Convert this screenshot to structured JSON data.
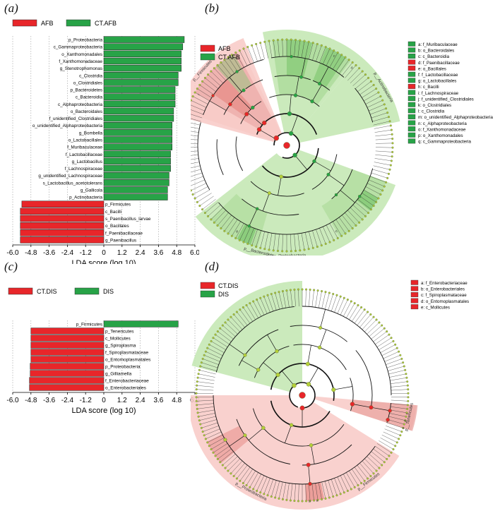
{
  "panel_labels": {
    "a": "(a)",
    "b": "(b)",
    "c": "(c)",
    "d": "(d)"
  },
  "colors": {
    "red": "#e8262a",
    "green": "#27a347",
    "light_green": "#c2e6b0",
    "light_red": "#f8c9c6",
    "node": "#b5cf39"
  },
  "chart_data": [
    {
      "type": "bar",
      "panel": "a",
      "legend": [
        {
          "name": "AFB",
          "color": "#e8262a"
        },
        {
          "name": "CT.AFB",
          "color": "#27a347"
        }
      ],
      "legend_position": "top-left",
      "xlabel": "LDA score (log 10)",
      "xlim": [
        -6.0,
        6.0
      ],
      "xticks": [
        "-6.0",
        "-4.8",
        "-3.6",
        "-2.4",
        "-1.2",
        "0",
        "1.2",
        "2.4",
        "3.6",
        "4.8",
        "6.0"
      ],
      "xtick_values": [
        -6.0,
        -4.8,
        -3.6,
        -2.4,
        -1.2,
        0,
        1.2,
        2.4,
        3.6,
        4.8,
        6.0
      ],
      "grid": true,
      "bars": [
        {
          "label": "p_Proteobacteria",
          "value": 5.3,
          "group": "CT.AFB"
        },
        {
          "label": "c_Gammaproteobacteria",
          "value": 5.2,
          "group": "CT.AFB"
        },
        {
          "label": "o_Xanthomonadales",
          "value": 5.1,
          "group": "CT.AFB"
        },
        {
          "label": "f_Xanthomonadaceae",
          "value": 5.1,
          "group": "CT.AFB"
        },
        {
          "label": "g_Stenotrophomonas",
          "value": 5.1,
          "group": "CT.AFB"
        },
        {
          "label": "c_Clostridia",
          "value": 4.9,
          "group": "CT.AFB"
        },
        {
          "label": "o_Clostridiales",
          "value": 4.9,
          "group": "CT.AFB"
        },
        {
          "label": "p_Bacteroidetes",
          "value": 4.7,
          "group": "CT.AFB"
        },
        {
          "label": "c_Bacteroidia",
          "value": 4.7,
          "group": "CT.AFB"
        },
        {
          "label": "c_Alphaproteobacteria",
          "value": 4.7,
          "group": "CT.AFB"
        },
        {
          "label": "o_Bacteroidales",
          "value": 4.6,
          "group": "CT.AFB"
        },
        {
          "label": "f_unidentified_Clostridiales",
          "value": 4.6,
          "group": "CT.AFB"
        },
        {
          "label": "o_unidentified_Alphaproteobacteria",
          "value": 4.5,
          "group": "CT.AFB"
        },
        {
          "label": "g_Bombella",
          "value": 4.5,
          "group": "CT.AFB"
        },
        {
          "label": "o_Lactobacillales",
          "value": 4.5,
          "group": "CT.AFB"
        },
        {
          "label": "f_Muribaculaceae",
          "value": 4.5,
          "group": "CT.AFB"
        },
        {
          "label": "f_Lactobacillaceae",
          "value": 4.4,
          "group": "CT.AFB"
        },
        {
          "label": "g_Lactobacillus",
          "value": 4.4,
          "group": "CT.AFB"
        },
        {
          "label": "f_Lachnospiraceae",
          "value": 4.4,
          "group": "CT.AFB"
        },
        {
          "label": "g_unidentified_Lachnospiraceae",
          "value": 4.3,
          "group": "CT.AFB"
        },
        {
          "label": "s_Lactobacillus_acetotolerans",
          "value": 4.3,
          "group": "CT.AFB"
        },
        {
          "label": "g_Gallicola",
          "value": 4.2,
          "group": "CT.AFB"
        },
        {
          "label": "p_Actinobacteria",
          "value": 4.2,
          "group": "CT.AFB"
        },
        {
          "label": "p_Firmicutes",
          "value": -5.4,
          "group": "AFB"
        },
        {
          "label": "c_Bacilli",
          "value": -5.5,
          "group": "AFB"
        },
        {
          "label": "s_Paenibacillus_larvae",
          "value": -5.5,
          "group": "AFB"
        },
        {
          "label": "o_Bacillales",
          "value": -5.5,
          "group": "AFB"
        },
        {
          "label": "f_Paenibacillaceae",
          "value": -5.5,
          "group": "AFB"
        },
        {
          "label": "g_Paenibacillus",
          "value": -5.5,
          "group": "AFB"
        }
      ]
    },
    {
      "type": "bar",
      "panel": "c",
      "legend": [
        {
          "name": "CT.DIS",
          "color": "#e8262a"
        },
        {
          "name": "DIS",
          "color": "#27a347"
        }
      ],
      "legend_position": "top-left",
      "xlabel": "LDA score (log 10)",
      "xlim": [
        -6.0,
        6.0
      ],
      "xticks": [
        "-6.0",
        "-4.8",
        "-3.6",
        "-2.4",
        "-1.2",
        "0",
        "1.2",
        "2.4",
        "3.6",
        "4.8",
        "6.0"
      ],
      "xtick_values": [
        -6.0,
        -4.8,
        -3.6,
        -2.4,
        -1.2,
        0,
        1.2,
        2.4,
        3.6,
        4.8,
        6.0
      ],
      "grid": true,
      "bars": [
        {
          "label": "p_Firmicutes",
          "value": 4.9,
          "group": "DIS"
        },
        {
          "label": "p_Tenericutes",
          "value": -4.8,
          "group": "CT.DIS"
        },
        {
          "label": "c_Mollicutes",
          "value": -4.8,
          "group": "CT.DIS"
        },
        {
          "label": "g_Spiroplasma",
          "value": -4.8,
          "group": "CT.DIS"
        },
        {
          "label": "f_Spiroplasmataceae",
          "value": -4.8,
          "group": "CT.DIS"
        },
        {
          "label": "o_Entomoplasmatales",
          "value": -4.8,
          "group": "CT.DIS"
        },
        {
          "label": "p_Proteobacteria",
          "value": -4.85,
          "group": "CT.DIS"
        },
        {
          "label": "g_Gilliamella",
          "value": -4.85,
          "group": "CT.DIS"
        },
        {
          "label": "f_Enterobacteriaceae",
          "value": -4.9,
          "group": "CT.DIS"
        },
        {
          "label": "o_Enterobacteriales",
          "value": -4.9,
          "group": "CT.DIS"
        }
      ]
    }
  ],
  "cladograms": {
    "b": {
      "legend": [
        {
          "name": "AFB",
          "color": "#e8262a"
        },
        {
          "name": "CT.AFB",
          "color": "#27a347"
        }
      ],
      "taxa_legend": [
        {
          "text": "a: f_Muribaculaceae",
          "color": "#27a347"
        },
        {
          "text": "b: o_Bacteroidales",
          "color": "#27a347"
        },
        {
          "text": "c: c_Bacteroidia",
          "color": "#27a347"
        },
        {
          "text": "d: f_Paenibacillaceae",
          "color": "#e8262a"
        },
        {
          "text": "e: o_Bacillales",
          "color": "#e8262a"
        },
        {
          "text": "f: f_Lactobacillaceae",
          "color": "#27a347"
        },
        {
          "text": "g: o_Lactobacillales",
          "color": "#27a347"
        },
        {
          "text": "h: c_Bacilli",
          "color": "#e8262a"
        },
        {
          "text": "i: f_Lachnospiraceae",
          "color": "#27a347"
        },
        {
          "text": "j: f_unidentified_Clostridiales",
          "color": "#27a347"
        },
        {
          "text": "k: o_Clostridiales",
          "color": "#27a347"
        },
        {
          "text": "l: c_Clostridia",
          "color": "#27a347"
        },
        {
          "text": "m: o_unidentified_Alphaproteobacteria",
          "color": "#27a347"
        },
        {
          "text": "n: c_Alphaproteobacteria",
          "color": "#27a347"
        },
        {
          "text": "o: f_Xanthomonadaceae",
          "color": "#27a347"
        },
        {
          "text": "p: o_Xanthomonadales",
          "color": "#27a347"
        },
        {
          "text": "q: c_Gammaproteobacteria",
          "color": "#27a347"
        }
      ],
      "sectors": [
        {
          "label": "p__Firmicutes",
          "color": "#f8c9c6"
        },
        {
          "label": "p__Bacteroidetes",
          "color": "#c2e6b0"
        },
        {
          "label": "p__Actinobacteria",
          "color": "#c2e6b0"
        },
        {
          "label": "p__Proteobacteria",
          "color": "#c2e6b0"
        }
      ]
    },
    "d": {
      "legend": [
        {
          "name": "CT.DIS",
          "color": "#e8262a"
        },
        {
          "name": "DIS",
          "color": "#27a347"
        }
      ],
      "taxa_legend": [
        {
          "text": "a: f_Enterobacteriaceae",
          "color": "#e8262a"
        },
        {
          "text": "b: o_Enterobacteriales",
          "color": "#e8262a"
        },
        {
          "text": "c: f_Spiroplasmataceae",
          "color": "#e8262a"
        },
        {
          "text": "d: o_Entomoplasmatales",
          "color": "#e8262a"
        },
        {
          "text": "e: c_Mollicutes",
          "color": "#e8262a"
        }
      ],
      "sectors": [
        {
          "label": "p__Firmicutes",
          "color": "#c2e6b0"
        },
        {
          "label": "p__Tenericutes",
          "color": "#f8c9c6"
        },
        {
          "label": "p__Proteobacteria",
          "color": "#f8c9c6"
        }
      ]
    }
  }
}
